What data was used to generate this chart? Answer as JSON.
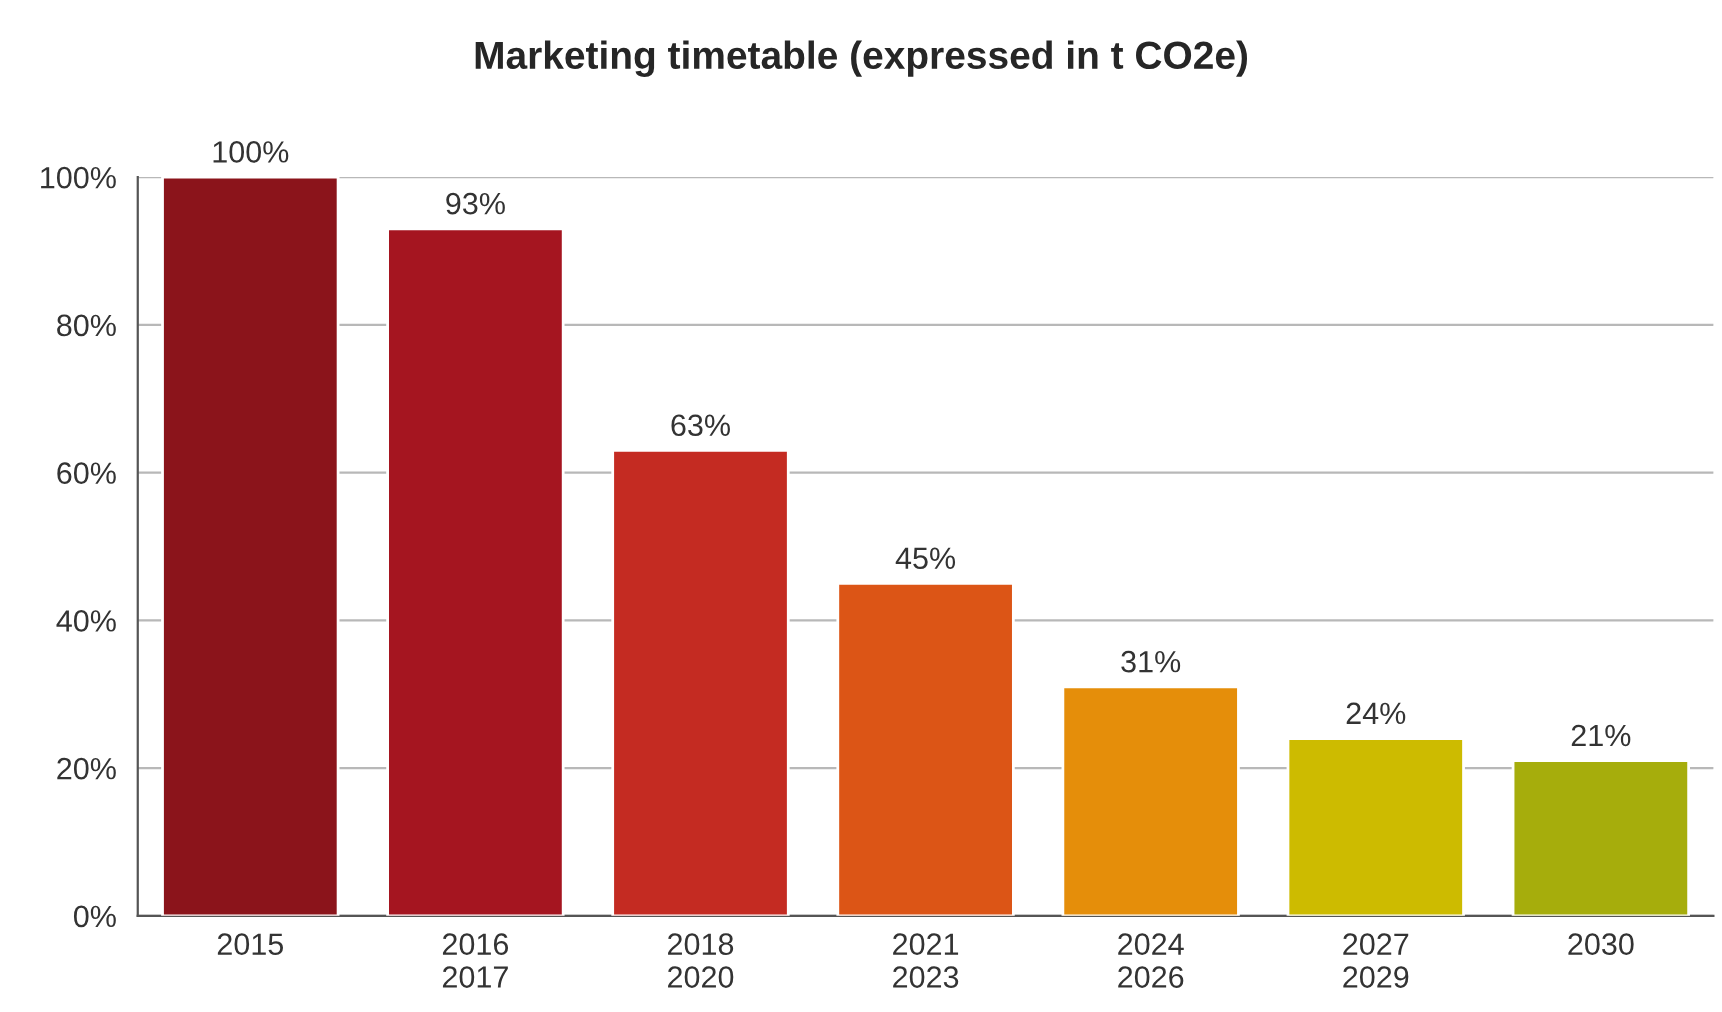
{
  "chart_data": {
    "type": "bar",
    "title": "Marketing timetable (expressed in t CO2e)",
    "categories": [
      "2015",
      "2016\n2017",
      "2018\n2020",
      "2021\n2023",
      "2024\n2026",
      "2027\n2029",
      "2030"
    ],
    "values": [
      100,
      93,
      63,
      45,
      31,
      24,
      21
    ],
    "colors": [
      "#8b141b",
      "#a51520",
      "#c42b22",
      "#dc5516",
      "#e58e0a",
      "#cdbb00",
      "#a6ad0c"
    ],
    "ylim": [
      0,
      100
    ],
    "yticks": [
      {
        "value": 0,
        "label": "0%"
      },
      {
        "value": 20,
        "label": "20%"
      },
      {
        "value": 40,
        "label": "40%"
      },
      {
        "value": 60,
        "label": "60%"
      },
      {
        "value": 80,
        "label": "80%"
      },
      {
        "value": 100,
        "label": "100%"
      }
    ],
    "value_labels": [
      "100%",
      "93%",
      "63%",
      "45%",
      "31%",
      "24%",
      "21%"
    ],
    "grid": "y",
    "legend": false
  }
}
